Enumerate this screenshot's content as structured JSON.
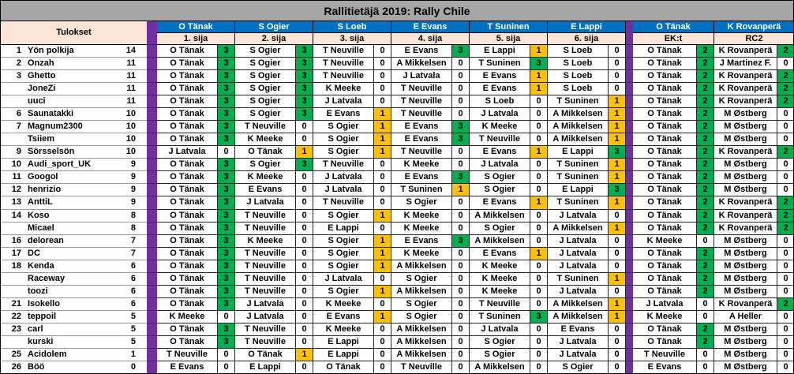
{
  "title": "Rallitietäjä 2019: Rally Chile",
  "results_header": "Tulokset",
  "colors": {
    "title_bar": "#A6A6A6",
    "header_blue": "#0070C0",
    "header_peach": "#FCE4D6",
    "separator_purple": "#7030A0",
    "points_high": "#00B050",
    "points_mid": "#FFC000",
    "points_zero": "#FFFFFF"
  },
  "columns": [
    {
      "driver": "O Tänak",
      "position": "1. sija"
    },
    {
      "driver": "S Ogier",
      "position": "2. sija"
    },
    {
      "driver": "S Loeb",
      "position": "3. sija"
    },
    {
      "driver": "E Evans",
      "position": "4. sija"
    },
    {
      "driver": "T Suninen",
      "position": "5. sija"
    },
    {
      "driver": "E Lappi",
      "position": "6. sija"
    },
    {
      "driver": "O Tänak",
      "position": "EK:t"
    },
    {
      "driver": "K Rovanperä",
      "position": "RC2"
    }
  ],
  "rows": [
    {
      "rank": "1",
      "name": "Yön polkija",
      "total": "14",
      "picks": [
        [
          "O Tänak",
          3
        ],
        [
          "S Ogier",
          3
        ],
        [
          "T Neuville",
          0
        ],
        [
          "E Evans",
          3
        ],
        [
          "E Lappi",
          1
        ],
        [
          "S Loeb",
          0
        ],
        [
          "O Tänak",
          2
        ],
        [
          "K Rovanperä",
          2
        ]
      ]
    },
    {
      "rank": "2",
      "name": "Onzah",
      "total": "11",
      "picks": [
        [
          "O Tänak",
          3
        ],
        [
          "S Ogier",
          3
        ],
        [
          "T Neuville",
          0
        ],
        [
          "A Mikkelsen",
          0
        ],
        [
          "T Suninen",
          3
        ],
        [
          "S Loeb",
          0
        ],
        [
          "O Tänak",
          2
        ],
        [
          "J Martinez F.",
          0
        ]
      ]
    },
    {
      "rank": "3",
      "name": "Ghetto",
      "total": "11",
      "picks": [
        [
          "O Tänak",
          3
        ],
        [
          "S Ogier",
          3
        ],
        [
          "T Neuville",
          0
        ],
        [
          "J Latvala",
          0
        ],
        [
          "E Evans",
          1
        ],
        [
          "S Loeb",
          0
        ],
        [
          "O Tänak",
          2
        ],
        [
          "K Rovanperä",
          2
        ]
      ]
    },
    {
      "rank": "",
      "name": "JoneZi",
      "total": "11",
      "picks": [
        [
          "O Tänak",
          3
        ],
        [
          "S Ogier",
          3
        ],
        [
          "K Meeke",
          0
        ],
        [
          "T Neuville",
          0
        ],
        [
          "E Evans",
          1
        ],
        [
          "S Loeb",
          0
        ],
        [
          "O Tänak",
          2
        ],
        [
          "K Rovanperä",
          2
        ]
      ]
    },
    {
      "rank": "",
      "name": "uuci",
      "total": "11",
      "picks": [
        [
          "O Tänak",
          3
        ],
        [
          "S Ogier",
          3
        ],
        [
          "J Latvala",
          0
        ],
        [
          "T Neuville",
          0
        ],
        [
          "S Loeb",
          0
        ],
        [
          "T Suninen",
          1
        ],
        [
          "O Tänak",
          2
        ],
        [
          "K Rovanperä",
          2
        ]
      ]
    },
    {
      "rank": "6",
      "name": "Saunatakki",
      "total": "10",
      "picks": [
        [
          "O Tänak",
          3
        ],
        [
          "S Ogier",
          3
        ],
        [
          "E Evans",
          1
        ],
        [
          "T Neuville",
          0
        ],
        [
          "J Latvala",
          0
        ],
        [
          "A Mikkelsen",
          1
        ],
        [
          "O Tänak",
          2
        ],
        [
          "M Østberg",
          0
        ]
      ]
    },
    {
      "rank": "7",
      "name": "Magnum2300",
      "total": "10",
      "picks": [
        [
          "O Tänak",
          3
        ],
        [
          "T Neuville",
          0
        ],
        [
          "S Ogier",
          1
        ],
        [
          "E Evans",
          3
        ],
        [
          "K Meeke",
          0
        ],
        [
          "A Mikkelsen",
          1
        ],
        [
          "O Tänak",
          2
        ],
        [
          "M Østberg",
          0
        ]
      ]
    },
    {
      "rank": "",
      "name": "Tsiiem",
      "total": "10",
      "picks": [
        [
          "O Tänak",
          3
        ],
        [
          "K Meeke",
          0
        ],
        [
          "S Ogier",
          1
        ],
        [
          "E Evans",
          3
        ],
        [
          "T Neuville",
          0
        ],
        [
          "A Mikkelsen",
          1
        ],
        [
          "O Tänak",
          2
        ],
        [
          "M Østberg",
          0
        ]
      ]
    },
    {
      "rank": "9",
      "name": "Sörsselsön",
      "total": "10",
      "picks": [
        [
          "J Latvala",
          0
        ],
        [
          "O Tänak",
          1
        ],
        [
          "S Ogier",
          1
        ],
        [
          "T Neuville",
          0
        ],
        [
          "E Evans",
          1
        ],
        [
          "E Lappi",
          3
        ],
        [
          "O Tänak",
          2
        ],
        [
          "K Rovanperä",
          2
        ]
      ]
    },
    {
      "rank": "10",
      "name": "Audi_sport_UK",
      "total": "9",
      "picks": [
        [
          "O Tänak",
          3
        ],
        [
          "S Ogier",
          3
        ],
        [
          "T Neuville",
          0
        ],
        [
          "K Meeke",
          0
        ],
        [
          "J Latvala",
          0
        ],
        [
          "T Suninen",
          1
        ],
        [
          "O Tänak",
          2
        ],
        [
          "M Østberg",
          0
        ]
      ]
    },
    {
      "rank": "11",
      "name": "Googol",
      "total": "9",
      "picks": [
        [
          "O Tänak",
          3
        ],
        [
          "K Meeke",
          0
        ],
        [
          "J Latvala",
          0
        ],
        [
          "E Evans",
          3
        ],
        [
          "S Ogier",
          0
        ],
        [
          "T Suninen",
          1
        ],
        [
          "O Tänak",
          2
        ],
        [
          "M Østberg",
          0
        ]
      ]
    },
    {
      "rank": "12",
      "name": "henrizio",
      "total": "9",
      "picks": [
        [
          "O Tänak",
          3
        ],
        [
          "E Evans",
          0
        ],
        [
          "J Latvala",
          0
        ],
        [
          "T Suninen",
          1
        ],
        [
          "S Ogier",
          0
        ],
        [
          "E Lappi",
          3
        ],
        [
          "O Tänak",
          2
        ],
        [
          "M Østberg",
          0
        ]
      ]
    },
    {
      "rank": "13",
      "name": "AnttiL",
      "total": "9",
      "picks": [
        [
          "O Tänak",
          3
        ],
        [
          "J Latvala",
          0
        ],
        [
          "T Neuville",
          0
        ],
        [
          "S Ogier",
          0
        ],
        [
          "E Evans",
          1
        ],
        [
          "T Suninen",
          1
        ],
        [
          "O Tänak",
          2
        ],
        [
          "K Rovanperä",
          2
        ]
      ]
    },
    {
      "rank": "14",
      "name": "Koso",
      "total": "8",
      "picks": [
        [
          "O Tänak",
          3
        ],
        [
          "T Neuville",
          0
        ],
        [
          "S Ogier",
          1
        ],
        [
          "K Meeke",
          0
        ],
        [
          "A Mikkelsen",
          0
        ],
        [
          "J Latvala",
          0
        ],
        [
          "O Tänak",
          2
        ],
        [
          "K Rovanperä",
          2
        ]
      ]
    },
    {
      "rank": "",
      "name": "Micael",
      "total": "8",
      "picks": [
        [
          "O Tänak",
          3
        ],
        [
          "T Neuville",
          0
        ],
        [
          "E Lappi",
          0
        ],
        [
          "K Meeke",
          0
        ],
        [
          "S Ogier",
          0
        ],
        [
          "A Mikkelsen",
          1
        ],
        [
          "O Tänak",
          2
        ],
        [
          "K Rovanperä",
          2
        ]
      ]
    },
    {
      "rank": "16",
      "name": "delorean",
      "total": "7",
      "picks": [
        [
          "O Tänak",
          3
        ],
        [
          "K Meeke",
          0
        ],
        [
          "S Ogier",
          1
        ],
        [
          "E Evans",
          3
        ],
        [
          "A Mikkelsen",
          0
        ],
        [
          "J Latvala",
          0
        ],
        [
          "K Meeke",
          0
        ],
        [
          "M Østberg",
          0
        ]
      ]
    },
    {
      "rank": "17",
      "name": "DC",
      "total": "7",
      "picks": [
        [
          "O Tänak",
          3
        ],
        [
          "T Neuville",
          0
        ],
        [
          "S Ogier",
          1
        ],
        [
          "K Meeke",
          0
        ],
        [
          "E Evans",
          1
        ],
        [
          "J Latvala",
          0
        ],
        [
          "O Tänak",
          2
        ],
        [
          "M Østberg",
          0
        ]
      ]
    },
    {
      "rank": "18",
      "name": "Kenda",
      "total": "6",
      "picks": [
        [
          "O Tänak",
          3
        ],
        [
          "T Neuville",
          0
        ],
        [
          "S Ogier",
          1
        ],
        [
          "A Mikkelsen",
          0
        ],
        [
          "K Meeke",
          0
        ],
        [
          "J Latvala",
          0
        ],
        [
          "O Tänak",
          2
        ],
        [
          "M Østberg",
          0
        ]
      ]
    },
    {
      "rank": "",
      "name": "Raceway",
      "total": "6",
      "picks": [
        [
          "O Tänak",
          3
        ],
        [
          "T Neuville",
          0
        ],
        [
          "J Latvala",
          0
        ],
        [
          "S Ogier",
          0
        ],
        [
          "K Meeke",
          0
        ],
        [
          "T Suninen",
          1
        ],
        [
          "O Tänak",
          2
        ],
        [
          "M Østberg",
          0
        ]
      ]
    },
    {
      "rank": "",
      "name": "toozi",
      "total": "6",
      "picks": [
        [
          "O Tänak",
          3
        ],
        [
          "T Neuville",
          0
        ],
        [
          "S Ogier",
          1
        ],
        [
          "A Mikkelsen",
          0
        ],
        [
          "K Meeke",
          0
        ],
        [
          "J Latvala",
          0
        ],
        [
          "O Tänak",
          2
        ],
        [
          "M Østberg",
          0
        ]
      ]
    },
    {
      "rank": "21",
      "name": "Isokello",
      "total": "6",
      "picks": [
        [
          "O Tänak",
          3
        ],
        [
          "J Latvala",
          0
        ],
        [
          "K Meeke",
          0
        ],
        [
          "S Ogier",
          0
        ],
        [
          "T Neuville",
          0
        ],
        [
          "A Mikkelsen",
          1
        ],
        [
          "J Latvala",
          0
        ],
        [
          "K Rovanperä",
          2
        ]
      ]
    },
    {
      "rank": "22",
      "name": "teppoil",
      "total": "5",
      "picks": [
        [
          "K Meeke",
          0
        ],
        [
          "J Latvala",
          0
        ],
        [
          "E Evans",
          1
        ],
        [
          "S Ogier",
          0
        ],
        [
          "T Suninen",
          3
        ],
        [
          "A Mikkelsen",
          1
        ],
        [
          "K Meeke",
          0
        ],
        [
          "A Heller",
          0
        ]
      ]
    },
    {
      "rank": "23",
      "name": "carl",
      "total": "5",
      "picks": [
        [
          "O Tänak",
          3
        ],
        [
          "T Neuville",
          0
        ],
        [
          "K Meeke",
          0
        ],
        [
          "A Mikkelsen",
          0
        ],
        [
          "J Latvala",
          0
        ],
        [
          "E Evans",
          0
        ],
        [
          "O Tänak",
          2
        ],
        [
          "M Østberg",
          0
        ]
      ]
    },
    {
      "rank": "",
      "name": "kurski",
      "total": "5",
      "picks": [
        [
          "O Tänak",
          3
        ],
        [
          "T Neuville",
          0
        ],
        [
          "E Lappi",
          0
        ],
        [
          "A Mikkelsen",
          0
        ],
        [
          "S Ogier",
          0
        ],
        [
          "J Latvala",
          0
        ],
        [
          "O Tänak",
          2
        ],
        [
          "M Østberg",
          0
        ]
      ]
    },
    {
      "rank": "25",
      "name": "Acidolem",
      "total": "1",
      "picks": [
        [
          "T Neuville",
          0
        ],
        [
          "O Tänak",
          1
        ],
        [
          "E Lappi",
          0
        ],
        [
          "A Mikkelsen",
          0
        ],
        [
          "S Ogier",
          0
        ],
        [
          "J Latvala",
          0
        ],
        [
          "T Neuville",
          0
        ],
        [
          "M Østberg",
          0
        ]
      ]
    },
    {
      "rank": "26",
      "name": "Böö",
      "total": "0",
      "picks": [
        [
          "E Evans",
          0
        ],
        [
          "E Lappi",
          0
        ],
        [
          "O Tänak",
          0
        ],
        [
          "T Neuville",
          0
        ],
        [
          "A Mikkelsen",
          0
        ],
        [
          "S Ogier",
          0
        ],
        [
          "E Evans",
          0
        ],
        [
          "M Østberg",
          0
        ]
      ]
    }
  ]
}
